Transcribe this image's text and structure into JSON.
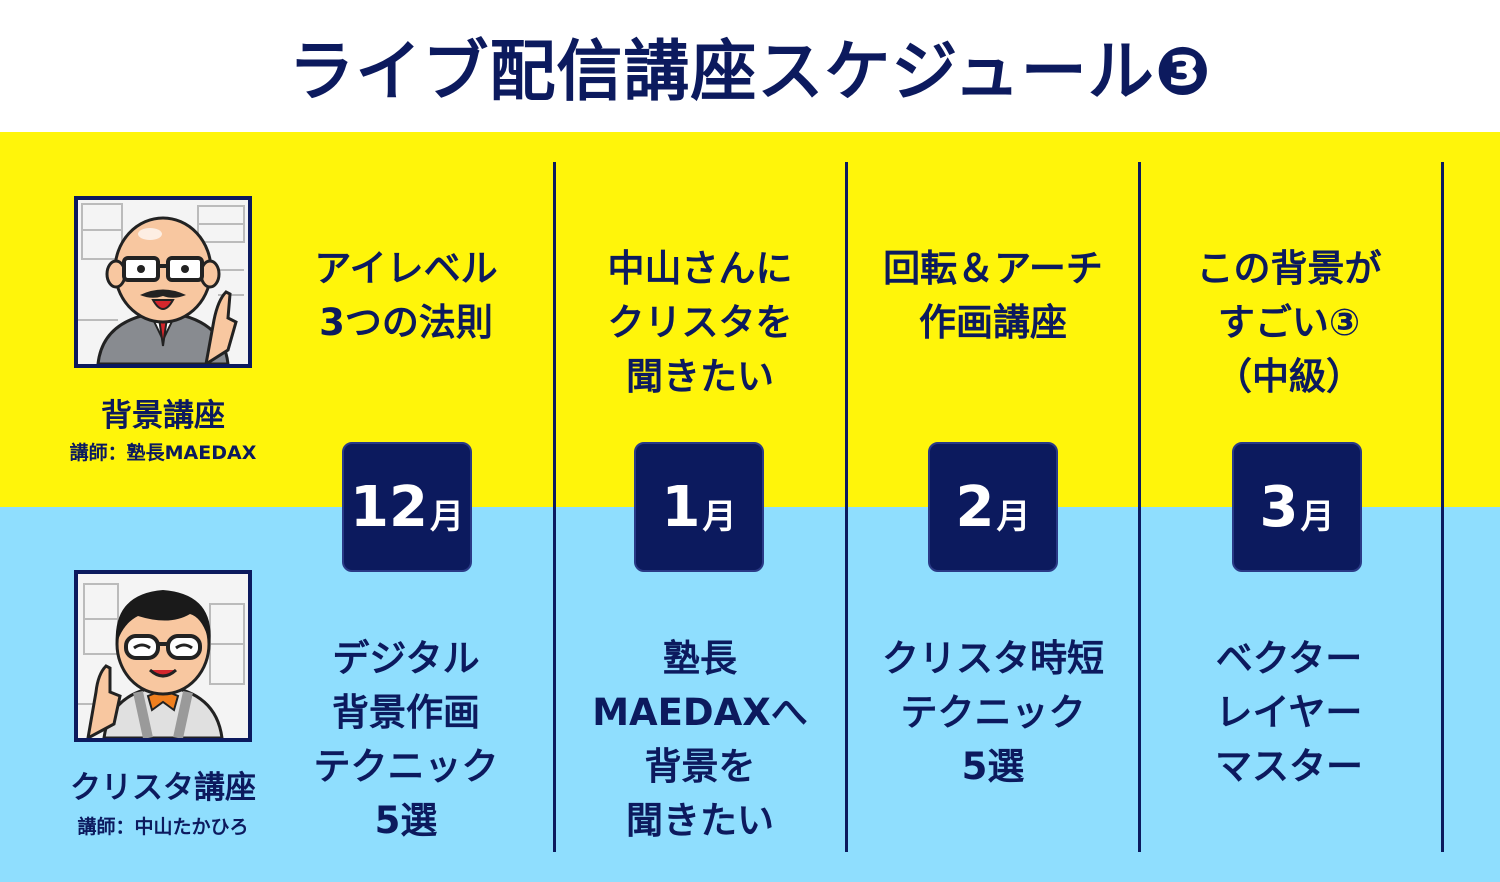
{
  "title": "ライブ配信講座スケジュール❸",
  "courses": [
    {
      "name": "背景講座",
      "teacher": "講師：塾長MAEDAX"
    },
    {
      "name": "クリスタ講座",
      "teacher": "講師：中山たかひろ"
    }
  ],
  "months": [
    {
      "num": "12",
      "unit": "月"
    },
    {
      "num": "1",
      "unit": "月"
    },
    {
      "num": "2",
      "unit": "月"
    },
    {
      "num": "3",
      "unit": "月"
    }
  ],
  "top_row": [
    "アイレベル\n3つの法則",
    "中山さんに\nクリスタを\n聞きたい",
    "回転＆アーチ\n作画講座",
    "この背景が\nすごい③\n（中級）"
  ],
  "bottom_row": [
    "デジタル\n背景作画\nテクニック\n5選",
    "塾長\nMAEDAXへ\n背景を\n聞きたい",
    "クリスタ時短\nテクニック\n5選",
    "ベクター\nレイヤー\nマスター"
  ],
  "colors": {
    "navy": "#0c1a5e",
    "yellow": "#fff50a",
    "sky": "#8fdefe"
  }
}
